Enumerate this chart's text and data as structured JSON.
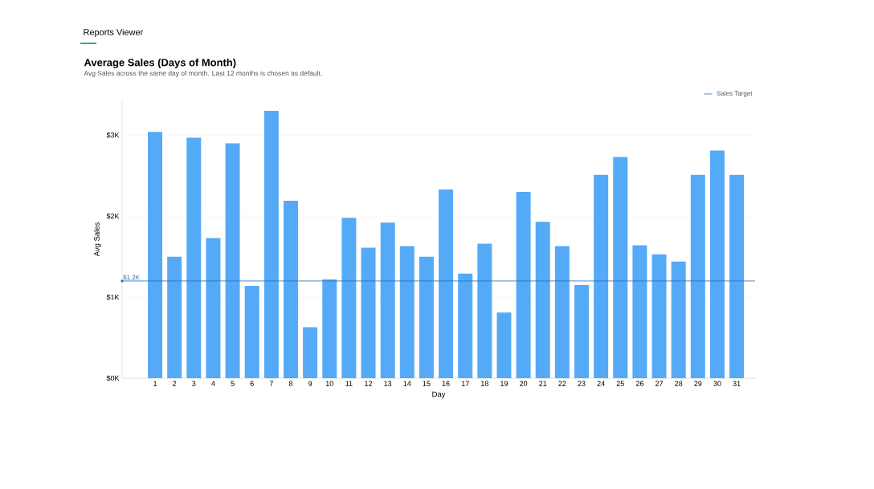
{
  "chart_data": {
    "type": "bar",
    "title": "Average Sales (Days of Month)",
    "subtitle": "Avg Sales across the same day of month. Last 12 months is chosen as default.",
    "xlabel": "Day",
    "ylabel": "Avg Sales",
    "annotations": [
      "Reports Viewer",
      {
        "text": "$1.2K",
        "y": 1200
      }
    ],
    "categories": [
      "1",
      "2",
      "3",
      "4",
      "5",
      "6",
      "7",
      "8",
      "9",
      "10",
      "11",
      "12",
      "13",
      "14",
      "15",
      "16",
      "17",
      "18",
      "19",
      "20",
      "21",
      "22",
      "23",
      "24",
      "25",
      "26",
      "27",
      "28",
      "29",
      "30",
      "31"
    ],
    "values": [
      3040,
      1500,
      2970,
      1730,
      2900,
      1140,
      3300,
      2190,
      630,
      1220,
      1980,
      1610,
      1920,
      1630,
      1500,
      2330,
      1290,
      1660,
      810,
      2300,
      1930,
      1630,
      1150,
      2510,
      2730,
      1640,
      1530,
      1440,
      2510,
      2810,
      2510
    ],
    "color": "#55aaf7",
    "ylim": [
      0,
      3430
    ],
    "yticks": [
      {
        "value": 0,
        "label": "$0K"
      },
      {
        "value": 1000,
        "label": "$1K"
      },
      {
        "value": 2000,
        "label": "$2K"
      },
      {
        "value": 3000,
        "label": "$3K"
      }
    ],
    "ref_lines": [
      {
        "axis": "y",
        "value": 1200,
        "label": "Sales Target",
        "color": "#1f6fbf"
      }
    ],
    "grid": "y",
    "legend": "top right"
  }
}
